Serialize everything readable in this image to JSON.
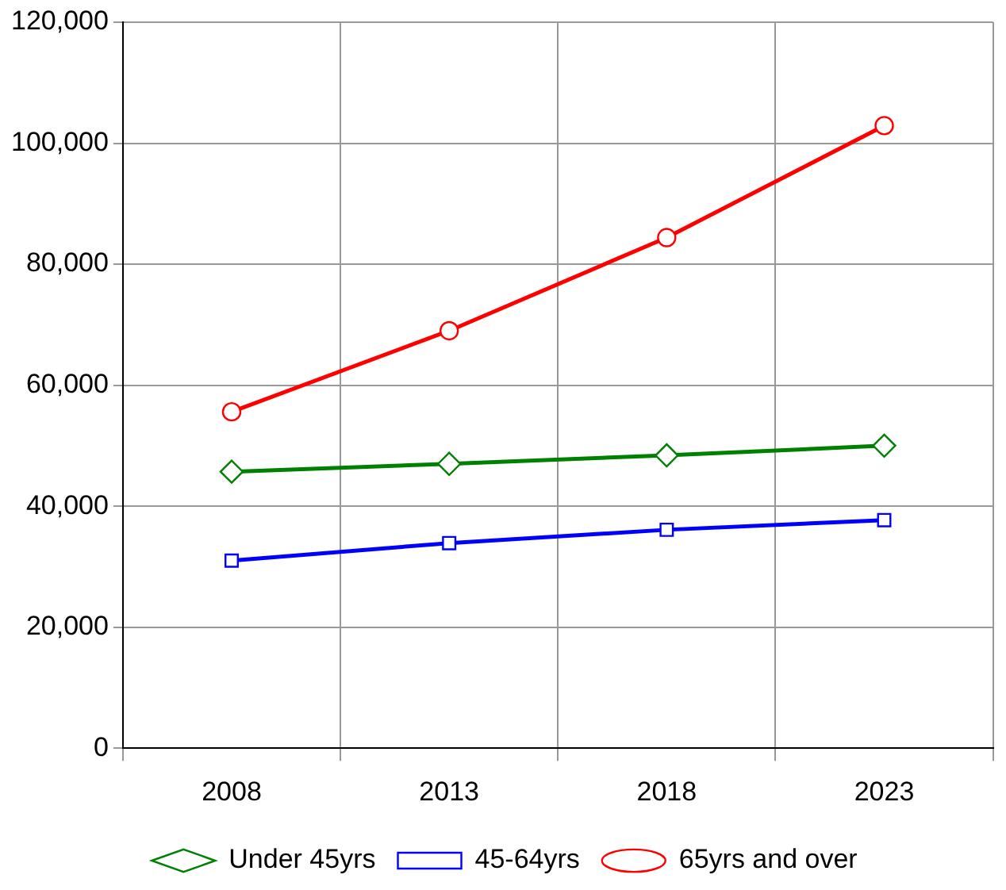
{
  "chart_data": {
    "type": "line",
    "categories": [
      "2008",
      "2013",
      "2018",
      "2023"
    ],
    "series": [
      {
        "name": "Under 45yrs",
        "color": "#008000",
        "marker": "diamond",
        "values": [
          45700,
          47000,
          48400,
          50000
        ]
      },
      {
        "name": "45-64yrs",
        "color": "#0000ff",
        "marker": "square",
        "values": [
          31000,
          33900,
          36100,
          37700
        ]
      },
      {
        "name": "65yrs and over",
        "color": "#ff0000",
        "marker": "circle",
        "values": [
          55600,
          69000,
          84400,
          102900
        ]
      }
    ],
    "ylim": [
      0,
      120000
    ],
    "yticks": [
      {
        "value": 0,
        "label": "0"
      },
      {
        "value": 20000,
        "label": "20,000"
      },
      {
        "value": 40000,
        "label": "40,000"
      },
      {
        "value": 60000,
        "label": "60,000"
      },
      {
        "value": 80000,
        "label": "80,000"
      },
      {
        "value": 100000,
        "label": "100,000"
      },
      {
        "value": 120000,
        "label": "120,000"
      }
    ],
    "grid": true,
    "legend": "bottom",
    "line_style": "solid"
  }
}
